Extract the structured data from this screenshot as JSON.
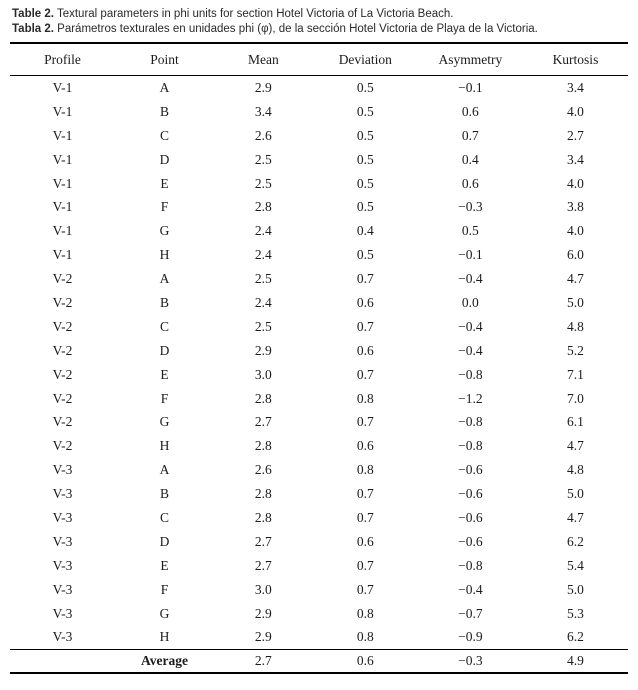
{
  "caption": {
    "english": {
      "label": "Table 2.",
      "text": " Textural parameters in phi units for section Hotel Victoria of La Victoria Beach."
    },
    "spanish": {
      "label": "Tabla 2.",
      "text": " Parámetros texturales en unidades phi (φ), de la sección Hotel Victoria de Playa de la Victoria."
    }
  },
  "table": {
    "columns": [
      "Profile",
      "Point",
      "Mean",
      "Deviation",
      "Asymmetry",
      "Kurtosis"
    ],
    "rows": [
      {
        "profile": "V-1",
        "point": "A",
        "mean": "2.9",
        "deviation": "0.5",
        "asymmetry": "−0.1",
        "kurtosis": "3.4"
      },
      {
        "profile": "V-1",
        "point": "B",
        "mean": "3.4",
        "deviation": "0.5",
        "asymmetry": "0.6",
        "kurtosis": "4.0"
      },
      {
        "profile": "V-1",
        "point": "C",
        "mean": "2.6",
        "deviation": "0.5",
        "asymmetry": "0.7",
        "kurtosis": "2.7"
      },
      {
        "profile": "V-1",
        "point": "D",
        "mean": "2.5",
        "deviation": "0.5",
        "asymmetry": "0.4",
        "kurtosis": "3.4"
      },
      {
        "profile": "V-1",
        "point": "E",
        "mean": "2.5",
        "deviation": "0.5",
        "asymmetry": "0.6",
        "kurtosis": "4.0"
      },
      {
        "profile": "V-1",
        "point": "F",
        "mean": "2.8",
        "deviation": "0.5",
        "asymmetry": "−0.3",
        "kurtosis": "3.8"
      },
      {
        "profile": "V-1",
        "point": "G",
        "mean": "2.4",
        "deviation": "0.4",
        "asymmetry": "0.5",
        "kurtosis": "4.0"
      },
      {
        "profile": "V-1",
        "point": "H",
        "mean": "2.4",
        "deviation": "0.5",
        "asymmetry": "−0.1",
        "kurtosis": "6.0"
      },
      {
        "profile": "V-2",
        "point": "A",
        "mean": "2.5",
        "deviation": "0.7",
        "asymmetry": "−0.4",
        "kurtosis": "4.7"
      },
      {
        "profile": "V-2",
        "point": "B",
        "mean": "2.4",
        "deviation": "0.6",
        "asymmetry": "0.0",
        "kurtosis": "5.0"
      },
      {
        "profile": "V-2",
        "point": "C",
        "mean": "2.5",
        "deviation": "0.7",
        "asymmetry": "−0.4",
        "kurtosis": "4.8"
      },
      {
        "profile": "V-2",
        "point": "D",
        "mean": "2.9",
        "deviation": "0.6",
        "asymmetry": "−0.4",
        "kurtosis": "5.2"
      },
      {
        "profile": "V-2",
        "point": "E",
        "mean": "3.0",
        "deviation": "0.7",
        "asymmetry": "−0.8",
        "kurtosis": "7.1"
      },
      {
        "profile": "V-2",
        "point": "F",
        "mean": "2.8",
        "deviation": "0.8",
        "asymmetry": "−1.2",
        "kurtosis": "7.0"
      },
      {
        "profile": "V-2",
        "point": "G",
        "mean": "2.7",
        "deviation": "0.7",
        "asymmetry": "−0.8",
        "kurtosis": "6.1"
      },
      {
        "profile": "V-2",
        "point": "H",
        "mean": "2.8",
        "deviation": "0.6",
        "asymmetry": "−0.8",
        "kurtosis": "4.7"
      },
      {
        "profile": "V-3",
        "point": "A",
        "mean": "2.6",
        "deviation": "0.8",
        "asymmetry": "−0.6",
        "kurtosis": "4.8"
      },
      {
        "profile": "V-3",
        "point": "B",
        "mean": "2.8",
        "deviation": "0.7",
        "asymmetry": "−0.6",
        "kurtosis": "5.0"
      },
      {
        "profile": "V-3",
        "point": "C",
        "mean": "2.8",
        "deviation": "0.7",
        "asymmetry": "−0.6",
        "kurtosis": "4.7"
      },
      {
        "profile": "V-3",
        "point": "D",
        "mean": "2.7",
        "deviation": "0.6",
        "asymmetry": "−0.6",
        "kurtosis": "6.2"
      },
      {
        "profile": "V-3",
        "point": "E",
        "mean": "2.7",
        "deviation": "0.7",
        "asymmetry": "−0.8",
        "kurtosis": "5.4"
      },
      {
        "profile": "V-3",
        "point": "F",
        "mean": "3.0",
        "deviation": "0.7",
        "asymmetry": "−0.4",
        "kurtosis": "5.0"
      },
      {
        "profile": "V-3",
        "point": "G",
        "mean": "2.9",
        "deviation": "0.8",
        "asymmetry": "−0.7",
        "kurtosis": "5.3"
      },
      {
        "profile": "V-3",
        "point": "H",
        "mean": "2.9",
        "deviation": "0.8",
        "asymmetry": "−0.9",
        "kurtosis": "6.2"
      }
    ],
    "average": {
      "profile": "",
      "label": "Average",
      "mean": "2.7",
      "deviation": "0.6",
      "asymmetry": "−0.3",
      "kurtosis": "4.9"
    }
  },
  "colors": {
    "background": "#ffffff",
    "text": "#1c1c1c",
    "rule": "#000000"
  }
}
